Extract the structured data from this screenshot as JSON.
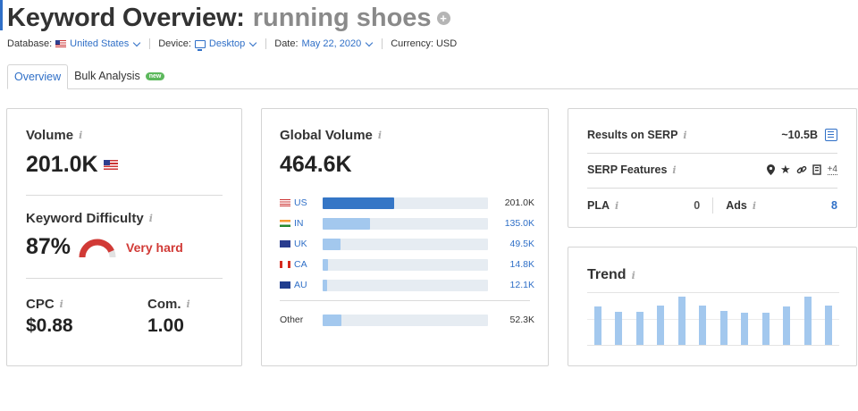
{
  "header": {
    "title": "Keyword Overview:",
    "keyword": "running shoes"
  },
  "filters": {
    "database_label": "Database:",
    "database_value": "United States",
    "device_label": "Device:",
    "device_value": "Desktop",
    "date_label": "Date:",
    "date_value": "May 22, 2020",
    "currency": "Currency: USD"
  },
  "tabs": [
    {
      "label": "Overview",
      "active": true
    },
    {
      "label": "Bulk Analysis",
      "active": false,
      "badge": "new"
    }
  ],
  "volume_card": {
    "volume_label": "Volume",
    "volume_value": "201.0K",
    "kd_label": "Keyword Difficulty",
    "kd_value": "87%",
    "kd_fraction": 0.87,
    "kd_text": "Very hard",
    "cpc_label": "CPC",
    "cpc_value": "$0.88",
    "com_label": "Com.",
    "com_value": "1.00"
  },
  "global_card": {
    "label": "Global Volume",
    "value": "464.6K",
    "countries": [
      {
        "code": "US",
        "value": "201.0K",
        "num": 201.0,
        "highlight": true
      },
      {
        "code": "IN",
        "value": "135.0K",
        "num": 135.0,
        "highlight": false
      },
      {
        "code": "UK",
        "value": "49.5K",
        "num": 49.5,
        "highlight": false
      },
      {
        "code": "CA",
        "value": "14.8K",
        "num": 14.8,
        "highlight": false
      },
      {
        "code": "AU",
        "value": "12.1K",
        "num": 12.1,
        "highlight": false
      }
    ],
    "other": {
      "label": "Other",
      "value": "52.3K",
      "num": 52.3
    }
  },
  "serp_card": {
    "results_label": "Results on SERP",
    "results_value": "~10.5B",
    "features_label": "SERP Features",
    "features_more": "+4",
    "pla_label": "PLA",
    "pla_value": "0",
    "ads_label": "Ads",
    "ads_value": "8"
  },
  "trend_card": {
    "label": "Trend",
    "values": [
      0.72,
      0.62,
      0.62,
      0.73,
      0.9,
      0.73,
      0.63,
      0.6,
      0.6,
      0.72,
      0.9,
      0.73
    ]
  },
  "colors": {
    "accent": "#2f6fc7",
    "bar_primary": "#3576c6",
    "bar_light": "#a3c8ee",
    "difficulty": "#d13a36",
    "pla_value": "#555555",
    "ads_value": "#2f6fc7"
  },
  "icons": {
    "info": "info-icon",
    "plus": "plus-circle-icon",
    "serp": "serp-results-icon",
    "features": [
      "location-pin-icon",
      "star-icon",
      "link-icon",
      "news-icon"
    ]
  }
}
